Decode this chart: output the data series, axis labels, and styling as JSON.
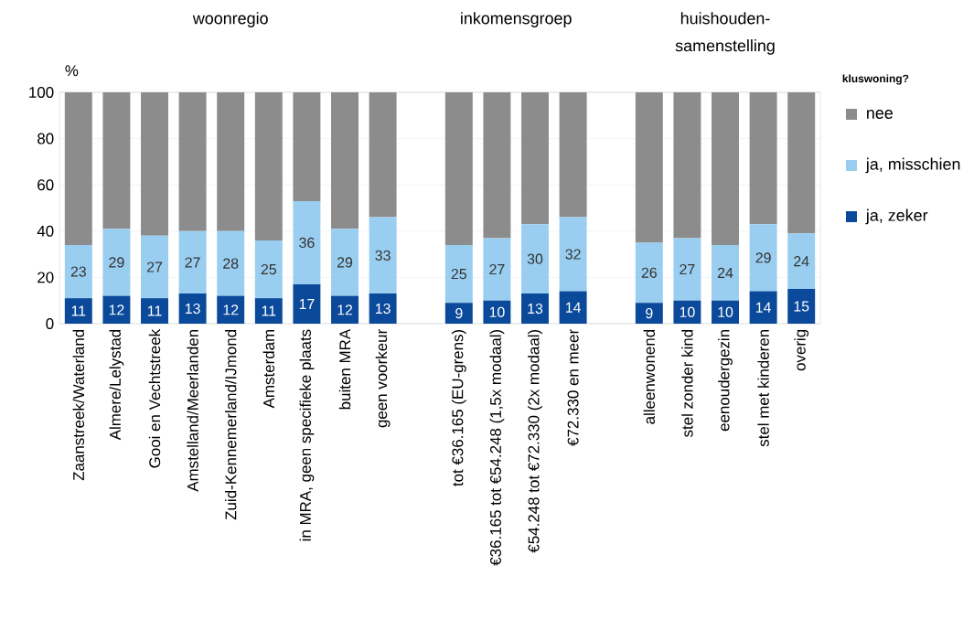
{
  "chart_data": {
    "type": "bar",
    "stacked": true,
    "ylabel": "%",
    "legend_title": "kluswoning?",
    "legend": "right",
    "grid": "y",
    "categories": [
      "Zaanstreek/Waterland",
      "Almere/Lelystad",
      "Gooi en Vechtstreek",
      "Amstelland/Meerlanden",
      "Zuid-Kennemerland/IJmond",
      "Amsterdam",
      "in MRA, geen specifieke plaats",
      "buiten MRA",
      "geen voorkeur",
      null,
      "tot €36.165 (EU-grens)",
      "€36.165 tot €54.248 (1,5x modaal)",
      "€54.248 tot €72.330 (2x modaal)",
      "€72.330 en meer",
      null,
      "alleenwonend",
      "stel zonder kind",
      "eenoudergezin",
      "stel met kinderen",
      "overig"
    ],
    "series": [
      {
        "name": "ja, zeker",
        "color": "#0b4a9a",
        "values": [
          11,
          12,
          11,
          13,
          12,
          11,
          17,
          12,
          13,
          null,
          9,
          10,
          13,
          14,
          null,
          9,
          10,
          10,
          14,
          15
        ],
        "value_labels": [
          "11",
          "12",
          "11",
          "13",
          "12",
          "11",
          "17",
          "12",
          "13",
          null,
          "9",
          "10",
          "13",
          "14",
          null,
          "9",
          "10",
          "10",
          "14",
          "15"
        ]
      },
      {
        "name": "ja, misschien",
        "color": "#99cef0",
        "values": [
          23,
          29,
          27,
          27,
          28,
          25,
          36,
          29,
          33,
          null,
          25,
          27,
          30,
          32,
          null,
          26,
          27,
          24,
          29,
          24
        ],
        "value_labels": [
          "23",
          "29",
          "27",
          "27",
          "28",
          "25",
          "36",
          "29",
          "33",
          null,
          "25",
          "27",
          "30",
          "32",
          null,
          "26",
          "27",
          "24",
          "29",
          "24"
        ]
      },
      {
        "name": "nee",
        "color": "#8c8c8c",
        "values": [
          66,
          59,
          62,
          60,
          60,
          64,
          47,
          59,
          54,
          null,
          66,
          63,
          57,
          54,
          null,
          65,
          63,
          66,
          57,
          61
        ]
      }
    ],
    "ylim": [
      0,
      100
    ],
    "yticks": [
      0,
      20,
      40,
      60,
      80,
      100
    ],
    "annotations": [
      "woonregio",
      "inkomensgroep",
      "huishouden-samenstelling"
    ]
  }
}
